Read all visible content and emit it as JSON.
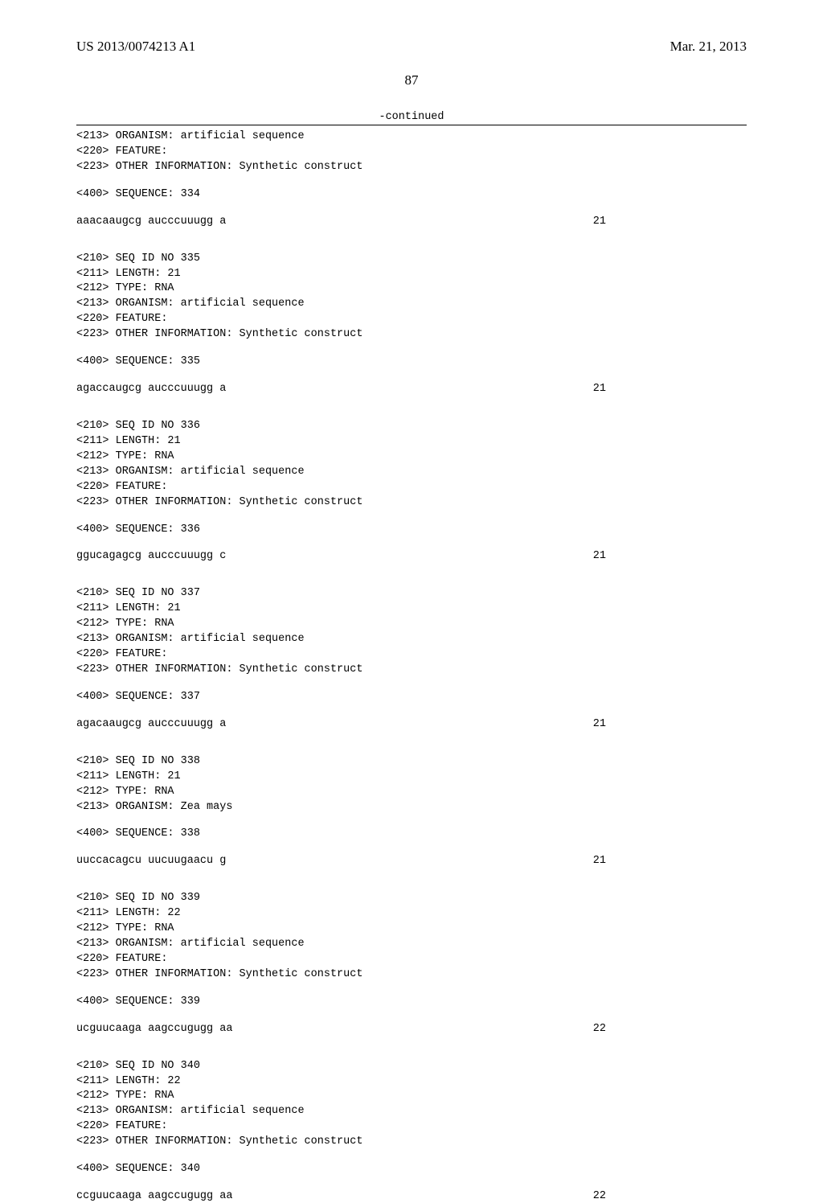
{
  "header": {
    "publication_number": "US 2013/0074213 A1",
    "date": "Mar. 21, 2013"
  },
  "page_number": "87",
  "continued_label": "-continued",
  "sequences": [
    {
      "meta": [
        "<213> ORGANISM: artificial sequence",
        "<220> FEATURE:",
        "<223> OTHER INFORMATION: Synthetic construct"
      ],
      "seq_header": "<400> SEQUENCE: 334",
      "seq_line": "aaacaaugcg aucccuuugg a",
      "length_num": "21"
    },
    {
      "meta": [
        "<210> SEQ ID NO 335",
        "<211> LENGTH: 21",
        "<212> TYPE: RNA",
        "<213> ORGANISM: artificial sequence",
        "<220> FEATURE:",
        "<223> OTHER INFORMATION: Synthetic construct"
      ],
      "seq_header": "<400> SEQUENCE: 335",
      "seq_line": "agaccaugcg aucccuuugg a",
      "length_num": "21"
    },
    {
      "meta": [
        "<210> SEQ ID NO 336",
        "<211> LENGTH: 21",
        "<212> TYPE: RNA",
        "<213> ORGANISM: artificial sequence",
        "<220> FEATURE:",
        "<223> OTHER INFORMATION: Synthetic construct"
      ],
      "seq_header": "<400> SEQUENCE: 336",
      "seq_line": "ggucagagcg aucccuuugg c",
      "length_num": "21"
    },
    {
      "meta": [
        "<210> SEQ ID NO 337",
        "<211> LENGTH: 21",
        "<212> TYPE: RNA",
        "<213> ORGANISM: artificial sequence",
        "<220> FEATURE:",
        "<223> OTHER INFORMATION: Synthetic construct"
      ],
      "seq_header": "<400> SEQUENCE: 337",
      "seq_line": "agacaaugcg aucccuuugg a",
      "length_num": "21"
    },
    {
      "meta": [
        "<210> SEQ ID NO 338",
        "<211> LENGTH: 21",
        "<212> TYPE: RNA",
        "<213> ORGANISM: Zea mays"
      ],
      "seq_header": "<400> SEQUENCE: 338",
      "seq_line": "uuccacagcu uucuugaacu g",
      "length_num": "21"
    },
    {
      "meta": [
        "<210> SEQ ID NO 339",
        "<211> LENGTH: 22",
        "<212> TYPE: RNA",
        "<213> ORGANISM: artificial sequence",
        "<220> FEATURE:",
        "<223> OTHER INFORMATION: Synthetic construct"
      ],
      "seq_header": "<400> SEQUENCE: 339",
      "seq_line": "ucguucaaga aagccugugg aa",
      "length_num": "22"
    },
    {
      "meta": [
        "<210> SEQ ID NO 340",
        "<211> LENGTH: 22",
        "<212> TYPE: RNA",
        "<213> ORGANISM: artificial sequence",
        "<220> FEATURE:",
        "<223> OTHER INFORMATION: Synthetic construct"
      ],
      "seq_header": "<400> SEQUENCE: 340",
      "seq_line": "ccguucaaga aagccugugg aa",
      "length_num": "22"
    }
  ]
}
